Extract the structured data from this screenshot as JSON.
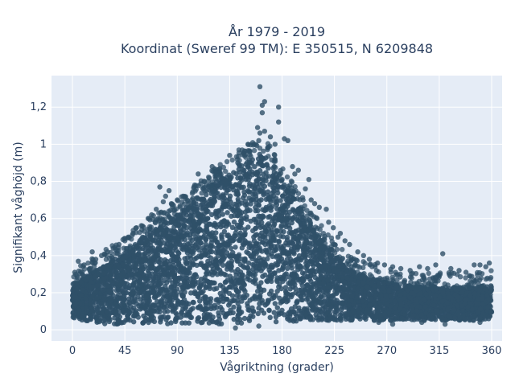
{
  "chart_data": {
    "type": "scatter",
    "title_lines": [
      "År 1979 - 2019",
      "Koordinat (Sweref 99 TM): E 350515, N 6209848"
    ],
    "xlabel": "Vågriktning (grader)",
    "ylabel": "Signifikant våghöjd (m)",
    "xlim": [
      -18,
      369
    ],
    "ylim": [
      -0.06,
      1.37
    ],
    "xticks": [
      0,
      45,
      90,
      135,
      180,
      225,
      270,
      315,
      360
    ],
    "yticks": [
      0,
      0.2,
      0.4,
      0.6,
      0.8,
      1,
      1.2
    ],
    "ytick_labels": [
      "0",
      "0,2",
      "0,4",
      "0,6",
      "0,8",
      "1",
      "1,2"
    ],
    "grid": true,
    "plot_background": "#e5ecf6",
    "marker_color": "#2f5068",
    "envelope": {
      "x": [
        0,
        10,
        20,
        30,
        45,
        60,
        75,
        90,
        105,
        120,
        135,
        150,
        160,
        170,
        180,
        195,
        210,
        225,
        240,
        255,
        270,
        285,
        300,
        315,
        330,
        345,
        360
      ],
      "upper": [
        0.25,
        0.28,
        0.32,
        0.36,
        0.42,
        0.5,
        0.56,
        0.62,
        0.7,
        0.78,
        0.86,
        0.92,
        0.95,
        0.92,
        0.8,
        0.66,
        0.52,
        0.4,
        0.32,
        0.28,
        0.26,
        0.24,
        0.23,
        0.23,
        0.23,
        0.23,
        0.24
      ],
      "lower": [
        0.06,
        0.05,
        0.04,
        0.03,
        0.03,
        0.03,
        0.03,
        0.03,
        0.03,
        0.03,
        0.03,
        0.03,
        0.04,
        0.04,
        0.04,
        0.04,
        0.05,
        0.05,
        0.05,
        0.05,
        0.05,
        0.05,
        0.05,
        0.05,
        0.05,
        0.05,
        0.06
      ]
    },
    "outliers": [
      {
        "x": 161,
        "y": 1.31
      },
      {
        "x": 165,
        "y": 1.23
      },
      {
        "x": 163,
        "y": 1.21
      },
      {
        "x": 163,
        "y": 1.17
      },
      {
        "x": 177,
        "y": 1.2
      },
      {
        "x": 177,
        "y": 1.12
      },
      {
        "x": 159,
        "y": 1.09
      },
      {
        "x": 161,
        "y": 1.06
      },
      {
        "x": 165,
        "y": 1.07
      },
      {
        "x": 182,
        "y": 1.03
      },
      {
        "x": 185,
        "y": 1.02
      },
      {
        "x": 170,
        "y": 1.04
      },
      {
        "x": 156,
        "y": 1.0
      },
      {
        "x": 160,
        "y": 1.02
      },
      {
        "x": 174,
        "y": 1.0
      },
      {
        "x": 135,
        "y": 0.94
      },
      {
        "x": 147,
        "y": 0.95
      },
      {
        "x": 142,
        "y": 0.9
      },
      {
        "x": 152,
        "y": 0.9
      },
      {
        "x": 189,
        "y": 0.88
      },
      {
        "x": 194,
        "y": 0.86
      },
      {
        "x": 191,
        "y": 0.84
      },
      {
        "x": 120,
        "y": 0.88
      },
      {
        "x": 123,
        "y": 0.85
      },
      {
        "x": 128,
        "y": 0.82
      },
      {
        "x": 132,
        "y": 0.8
      },
      {
        "x": 108,
        "y": 0.84
      },
      {
        "x": 113,
        "y": 0.8
      },
      {
        "x": 105,
        "y": 0.78
      },
      {
        "x": 115,
        "y": 0.75
      },
      {
        "x": 200,
        "y": 0.76
      },
      {
        "x": 203,
        "y": 0.81
      },
      {
        "x": 198,
        "y": 0.7
      },
      {
        "x": 205,
        "y": 0.7
      },
      {
        "x": 208,
        "y": 0.68
      },
      {
        "x": 212,
        "y": 0.66
      },
      {
        "x": 218,
        "y": 0.65
      },
      {
        "x": 210,
        "y": 0.6
      },
      {
        "x": 220,
        "y": 0.58
      },
      {
        "x": 224,
        "y": 0.55
      },
      {
        "x": 230,
        "y": 0.52
      },
      {
        "x": 234,
        "y": 0.48
      },
      {
        "x": 238,
        "y": 0.46
      },
      {
        "x": 228,
        "y": 0.5
      },
      {
        "x": 83,
        "y": 0.75
      },
      {
        "x": 80,
        "y": 0.72
      },
      {
        "x": 85,
        "y": 0.68
      },
      {
        "x": 90,
        "y": 0.7
      },
      {
        "x": 95,
        "y": 0.72
      },
      {
        "x": 100,
        "y": 0.68
      },
      {
        "x": 75,
        "y": 0.77
      },
      {
        "x": 78,
        "y": 0.69
      },
      {
        "x": 72,
        "y": 0.65
      },
      {
        "x": 68,
        "y": 0.62
      },
      {
        "x": 65,
        "y": 0.6
      },
      {
        "x": 60,
        "y": 0.56
      },
      {
        "x": 55,
        "y": 0.55
      },
      {
        "x": 52,
        "y": 0.52
      },
      {
        "x": 48,
        "y": 0.5
      },
      {
        "x": 45,
        "y": 0.48
      },
      {
        "x": 40,
        "y": 0.46
      },
      {
        "x": 35,
        "y": 0.44
      },
      {
        "x": 30,
        "y": 0.42
      },
      {
        "x": 25,
        "y": 0.4
      },
      {
        "x": 17,
        "y": 0.42
      },
      {
        "x": 5,
        "y": 0.37
      },
      {
        "x": 10,
        "y": 0.35
      },
      {
        "x": 15,
        "y": 0.33
      },
      {
        "x": 2,
        "y": 0.31
      },
      {
        "x": 20,
        "y": 0.38
      },
      {
        "x": 245,
        "y": 0.42
      },
      {
        "x": 250,
        "y": 0.4
      },
      {
        "x": 255,
        "y": 0.38
      },
      {
        "x": 262,
        "y": 0.36
      },
      {
        "x": 268,
        "y": 0.35
      },
      {
        "x": 275,
        "y": 0.34
      },
      {
        "x": 282,
        "y": 0.33
      },
      {
        "x": 290,
        "y": 0.32
      },
      {
        "x": 298,
        "y": 0.34
      },
      {
        "x": 305,
        "y": 0.33
      },
      {
        "x": 312,
        "y": 0.35
      },
      {
        "x": 318,
        "y": 0.41
      },
      {
        "x": 325,
        "y": 0.33
      },
      {
        "x": 332,
        "y": 0.32
      },
      {
        "x": 338,
        "y": 0.31
      },
      {
        "x": 345,
        "y": 0.35
      },
      {
        "x": 350,
        "y": 0.35
      },
      {
        "x": 355,
        "y": 0.34
      },
      {
        "x": 358,
        "y": 0.36
      },
      {
        "x": 263,
        "y": 0.04
      },
      {
        "x": 275,
        "y": 0.03
      },
      {
        "x": 300,
        "y": 0.04
      },
      {
        "x": 320,
        "y": 0.03
      },
      {
        "x": 350,
        "y": 0.04
      },
      {
        "x": 140,
        "y": 0.01
      },
      {
        "x": 160,
        "y": 0.02
      }
    ]
  }
}
